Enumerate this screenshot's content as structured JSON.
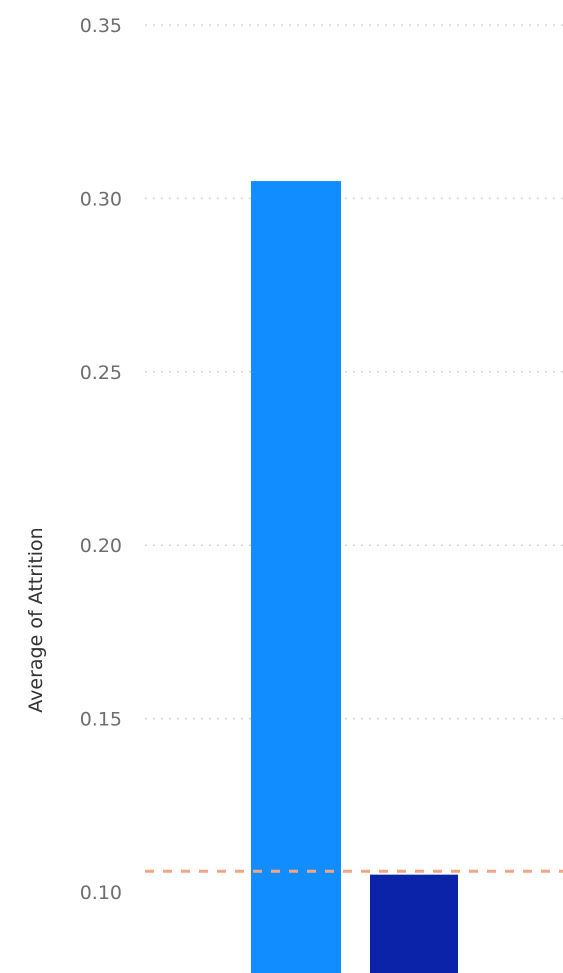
{
  "chart_data": {
    "type": "bar",
    "categories": [
      "",
      ""
    ],
    "values": [
      0.305,
      0.105
    ],
    "ylabel": "Average of Attrition",
    "ylim": [
      0.08,
      0.35
    ],
    "yticks": [
      0.35,
      0.3,
      0.25,
      0.2,
      0.15,
      0.1
    ],
    "ytick_labels": [
      "0.35",
      "0.30",
      "0.25",
      "0.20",
      "0.15",
      "0.10"
    ],
    "grid": true,
    "reference_line": {
      "value": 0.106,
      "color": "#f4a582",
      "style": "dashed"
    },
    "colors": [
      "#118dff",
      "#0b23a8"
    ]
  }
}
